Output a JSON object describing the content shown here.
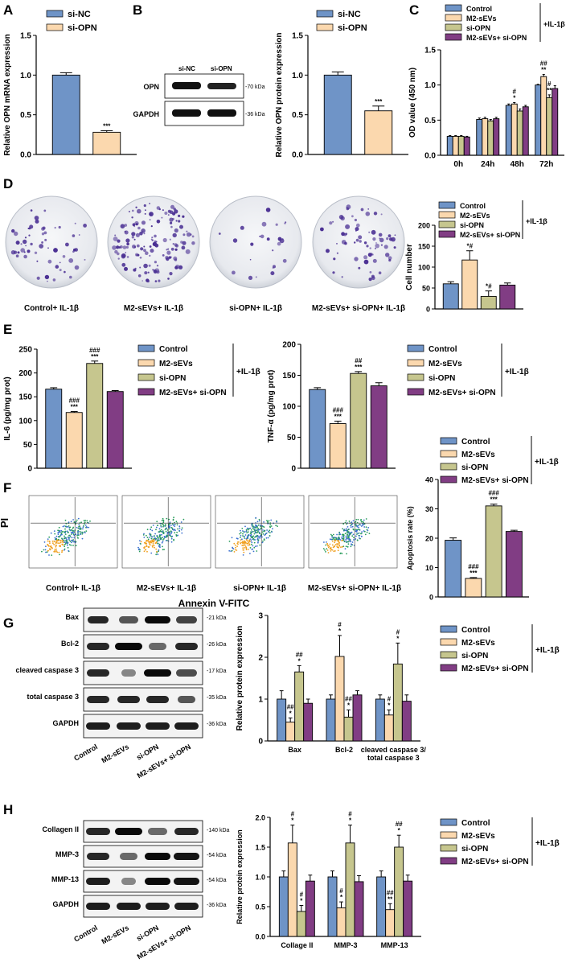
{
  "colors": {
    "blue": "#6f94c7",
    "peach": "#fbd8ae",
    "olive": "#c6c68e",
    "purple": "#813d84",
    "colony": "#4a2f93",
    "plate": "#eef0f3"
  },
  "groups": [
    "Control",
    "M2-sEVs",
    "si-OPN",
    "M2-sEVs+ si-OPN"
  ],
  "il1b_label": "+IL-1β",
  "panels": {
    "A": {
      "letter": "A"
    },
    "B": {
      "letter": "B",
      "wb_lanes": [
        "si-NC",
        "si-OPN"
      ],
      "bands": [
        {
          "name": "OPN",
          "kda": "-70 kDa"
        },
        {
          "name": "GAPDH",
          "kda": "-36 kDa"
        }
      ]
    },
    "C": {
      "letter": "C"
    },
    "D": {
      "letter": "D",
      "plates": [
        "Control+ IL-1β",
        "M2-sEVs+ IL-1β",
        "si-OPN+ IL-1β",
        "M2-sEVs+ si-OPN+ IL-1β"
      ]
    },
    "E": {
      "letter": "E"
    },
    "F": {
      "letter": "F",
      "ylabel": "PI",
      "xlabel": "Annexin V-FITC",
      "plots": [
        "Control+ IL-1β",
        "M2-sEVs+ IL-1β",
        "si-OPN+ IL-1β",
        "M2-sEVs+ si-OPN+ IL-1β"
      ]
    },
    "G": {
      "letter": "G",
      "bands": [
        {
          "name": "Bax",
          "kda": "-21 kDa"
        },
        {
          "name": "Bcl-2",
          "kda": "-26 kDa"
        },
        {
          "name": "cleaved caspase 3",
          "kda": "-17 kDa"
        },
        {
          "name": "total caspase 3",
          "kda": "-35 kDa"
        },
        {
          "name": "GAPDH",
          "kda": "-36 kDa"
        }
      ],
      "lanes": [
        "Control",
        "M2-sEVs",
        "si-OPN",
        "M2-sEVs+ si-OPN"
      ]
    },
    "H": {
      "letter": "H",
      "bands": [
        {
          "name": "Collagen II",
          "kda": "-140 kDa"
        },
        {
          "name": "MMP-3",
          "kda": "-54 kDa"
        },
        {
          "name": "MMP-13",
          "kda": "-54 kDa"
        },
        {
          "name": "GAPDH",
          "kda": "-36 kDa"
        }
      ],
      "lanes": [
        "Control",
        "M2-sEVs",
        "si-OPN",
        "M2-sEVs+ si-OPN"
      ]
    }
  },
  "chart_data": [
    {
      "id": "A",
      "type": "bar",
      "categories": [
        "si-NC",
        "si-OPN"
      ],
      "values": [
        1.0,
        0.28
      ],
      "errors": [
        0.03,
        0.02
      ],
      "sig": [
        "",
        "***"
      ],
      "ylabel": "Relative OPN mRNA expression",
      "ylim": [
        0,
        1.5
      ],
      "yticks": [
        0.0,
        0.5,
        1.0,
        1.5
      ],
      "legend": [
        "si-NC",
        "si-OPN"
      ]
    },
    {
      "id": "B",
      "type": "bar",
      "categories": [
        "si-NC",
        "si-OPN"
      ],
      "values": [
        1.0,
        0.55
      ],
      "errors": [
        0.04,
        0.06
      ],
      "sig": [
        "",
        "***"
      ],
      "ylabel": "Relative OPN protein expression",
      "ylim": [
        0,
        1.5
      ],
      "yticks": [
        0.0,
        0.5,
        1.0,
        1.5
      ],
      "legend": [
        "si-NC",
        "si-OPN"
      ]
    },
    {
      "id": "C",
      "type": "bar",
      "categories": [
        "0h",
        "24h",
        "48h",
        "72h"
      ],
      "ylabel": "OD value (450 nm)",
      "ylim": [
        0,
        1.5
      ],
      "yticks": [
        0.0,
        0.5,
        1.0,
        1.5
      ],
      "series": [
        {
          "name": "Control",
          "values": [
            0.27,
            0.51,
            0.71,
            1.0
          ],
          "errors": [
            0.01,
            0.02,
            0.02,
            0.01
          ],
          "sig": [
            "",
            "",
            "",
            ""
          ]
        },
        {
          "name": "M2-sEVs",
          "values": [
            0.27,
            0.52,
            0.73,
            1.12
          ],
          "errors": [
            0.01,
            0.02,
            0.02,
            0.03
          ],
          "sig": [
            "",
            "",
            "#\n*",
            "##\n**"
          ]
        },
        {
          "name": "si-OPN",
          "values": [
            0.27,
            0.49,
            0.63,
            0.82
          ],
          "errors": [
            0.01,
            0.02,
            0.03,
            0.04
          ],
          "sig": [
            "",
            "",
            "",
            "#\n**"
          ]
        },
        {
          "name": "M2-sEVs+ si-OPN",
          "values": [
            0.26,
            0.52,
            0.69,
            0.95
          ],
          "errors": [
            0.01,
            0.02,
            0.02,
            0.04
          ],
          "sig": [
            "",
            "",
            "",
            ""
          ]
        }
      ]
    },
    {
      "id": "D",
      "type": "bar",
      "categories": [
        "Control",
        "M2-sEVs",
        "si-OPN",
        "M2-sEVs+ si-OPN"
      ],
      "values": [
        60,
        117,
        30,
        57
      ],
      "errors": [
        5,
        22,
        13,
        5
      ],
      "sig": [
        "",
        "*#",
        "*#",
        ""
      ],
      "ylabel": "Cell number",
      "ylim": [
        0,
        200
      ],
      "yticks": [
        0,
        50,
        100,
        150,
        200
      ]
    },
    {
      "id": "E1",
      "type": "bar",
      "categories": [
        "Control",
        "M2-sEVs",
        "si-OPN",
        "M2-sEVs+ si-OPN"
      ],
      "values": [
        166,
        117,
        220,
        161
      ],
      "errors": [
        3,
        2,
        5,
        2
      ],
      "sig": [
        "",
        "###\n***",
        "###\n***",
        ""
      ],
      "ylabel": "IL-6 (pg/mg prot)",
      "ylim": [
        0,
        250
      ],
      "yticks": [
        0,
        50,
        100,
        150,
        200,
        250
      ]
    },
    {
      "id": "E2",
      "type": "bar",
      "categories": [
        "Control",
        "M2-sEVs",
        "si-OPN",
        "M2-sEVs+ si-OPN"
      ],
      "values": [
        127,
        72,
        153,
        133
      ],
      "errors": [
        3,
        4,
        3,
        5
      ],
      "sig": [
        "",
        "###\n***",
        "##\n***",
        ""
      ],
      "ylabel": "TNF-α (pg/mg prot)",
      "ylim": [
        0,
        200
      ],
      "yticks": [
        0,
        50,
        100,
        150,
        200
      ]
    },
    {
      "id": "F",
      "type": "bar",
      "categories": [
        "Control",
        "M2-sEVs",
        "si-OPN",
        "M2-sEVs+ si-OPN"
      ],
      "values": [
        19.3,
        6.3,
        31.0,
        22.3
      ],
      "errors": [
        0.8,
        0.3,
        0.6,
        0.4
      ],
      "sig": [
        "",
        "###\n***",
        "###\n***",
        ""
      ],
      "ylabel": "Apoptosis rate (%)",
      "ylim": [
        0,
        40
      ],
      "yticks": [
        0,
        10,
        20,
        30,
        40
      ]
    },
    {
      "id": "G",
      "type": "bar",
      "categories": [
        "Bax",
        "Bcl-2",
        "cleaved caspase 3/\ntotal caspase 3"
      ],
      "ylabel": "Relative protein expression",
      "ylim": [
        0,
        3
      ],
      "yticks": [
        0,
        1,
        2,
        3
      ],
      "series": [
        {
          "name": "Control",
          "values": [
            1.0,
            1.0,
            1.0
          ],
          "errors": [
            0.2,
            0.1,
            0.1
          ],
          "sig": [
            "",
            "",
            ""
          ]
        },
        {
          "name": "M2-sEVs",
          "values": [
            0.45,
            2.02,
            0.62
          ],
          "errors": [
            0.1,
            0.5,
            0.12
          ],
          "sig": [
            "##\n*",
            "#\n*",
            "#\n*"
          ]
        },
        {
          "name": "si-OPN",
          "values": [
            1.65,
            0.57,
            1.84
          ],
          "errors": [
            0.15,
            0.17,
            0.5
          ],
          "sig": [
            "##\n*",
            "##\n*",
            "#\n*"
          ]
        },
        {
          "name": "M2-sEVs+ si-OPN",
          "values": [
            0.9,
            1.1,
            0.95
          ],
          "errors": [
            0.1,
            0.1,
            0.15
          ],
          "sig": [
            "",
            "",
            ""
          ]
        }
      ]
    },
    {
      "id": "H",
      "type": "bar",
      "categories": [
        "Collage II",
        "MMP-3",
        "MMP-13"
      ],
      "ylabel": "Relative protein expression",
      "ylim": [
        0,
        2.0
      ],
      "yticks": [
        0.0,
        0.5,
        1.0,
        1.5,
        2.0
      ],
      "series": [
        {
          "name": "Control",
          "values": [
            1.0,
            1.0,
            1.0
          ],
          "errors": [
            0.1,
            0.1,
            0.1
          ],
          "sig": [
            "",
            "",
            ""
          ]
        },
        {
          "name": "M2-sEVs",
          "values": [
            1.57,
            0.48,
            0.45
          ],
          "errors": [
            0.3,
            0.1,
            0.1
          ],
          "sig": [
            "#\n*",
            "#\n*",
            "##\n**"
          ]
        },
        {
          "name": "si-OPN",
          "values": [
            0.42,
            1.57,
            1.5
          ],
          "errors": [
            0.1,
            0.3,
            0.2
          ],
          "sig": [
            "#\n*",
            "#\n*",
            "##\n*"
          ]
        },
        {
          "name": "M2-sEVs+ si-OPN",
          "values": [
            0.93,
            0.92,
            0.93
          ],
          "errors": [
            0.1,
            0.1,
            0.1
          ],
          "sig": [
            "",
            "",
            ""
          ]
        }
      ]
    }
  ]
}
